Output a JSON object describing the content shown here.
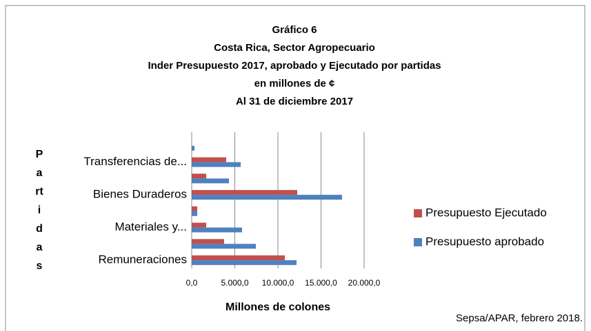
{
  "chart_data": {
    "type": "barh",
    "title": [
      "Gráfico 6",
      "Costa Rica, Sector Agropecuario",
      "Inder Presupuesto  2017, aprobado  y Ejecutado por partidas",
      "en millones de ¢",
      "Al 31 de diciembre 2017"
    ],
    "x_label": "Millones de colones",
    "y_label": "Partidas",
    "source": "Sepsa/APAR, febrero 2018.",
    "categories": [
      "Remuneraciones",
      null,
      "Materiales y...",
      null,
      "Bienes Duraderos",
      null,
      "Transferencias de...",
      null
    ],
    "series": [
      {
        "name": "Presupuesto Ejecutado",
        "color": "#c0504d",
        "values": [
          10800,
          3760,
          1680,
          640,
          12240,
          1680,
          4000,
          0
        ]
      },
      {
        "name": "Presupuesto aprobado",
        "color": "#4f81bd",
        "values": [
          12160,
          7440,
          5840,
          640,
          17440,
          4320,
          5680,
          320
        ]
      }
    ],
    "xlim": [
      0,
      20000
    ],
    "xticks": [
      {
        "value": 0,
        "label": "0,0"
      },
      {
        "value": 5000,
        "label": "5.000,0"
      },
      {
        "value": 10000,
        "label": "10.000,0"
      },
      {
        "value": 15000,
        "label": "15.000,0"
      },
      {
        "value": 20000,
        "label": "20.000,0"
      }
    ],
    "grid": true,
    "legend": "right"
  }
}
